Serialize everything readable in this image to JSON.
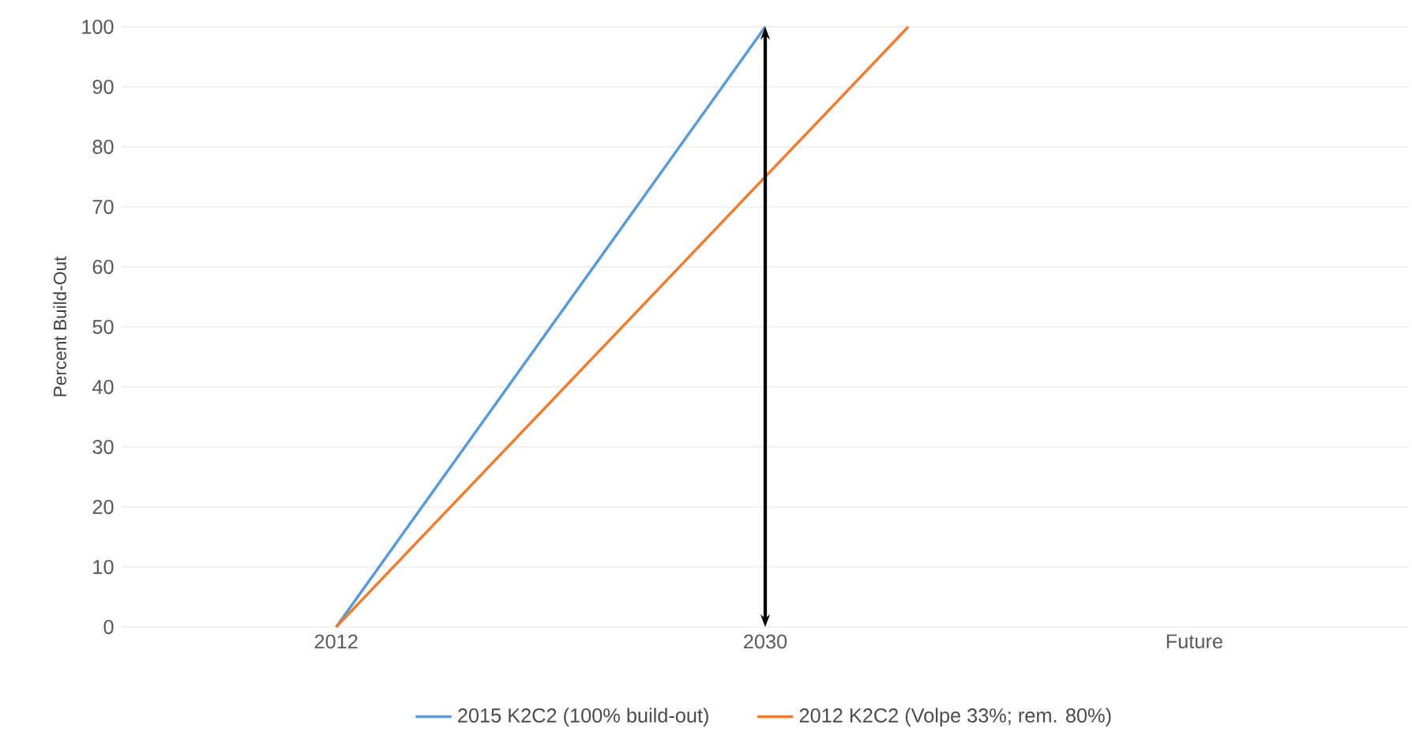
{
  "chart_data": {
    "type": "line",
    "ylabel": "Percent Build-Out",
    "xlim": [
      2003,
      2057
    ],
    "xticks": [
      2012,
      2030,
      {
        "value": 2048,
        "label": "Future"
      }
    ],
    "ylim": [
      0,
      100
    ],
    "yticks": [
      0,
      10,
      20,
      30,
      40,
      50,
      60,
      70,
      80,
      90,
      100
    ],
    "series": [
      {
        "name": "2015 K2C2 (100% build-out)",
        "color": "#5b9bd5",
        "x": [
          2012,
          2030
        ],
        "values": [
          0,
          100
        ]
      },
      {
        "name": "2012 K2C2 (Volpe 33%; rem. 80%)",
        "color": "#ed7d31",
        "x": [
          2012,
          2036
        ],
        "values": [
          0,
          100
        ]
      }
    ],
    "ref_lines": [
      {
        "axis": "x",
        "value": 2030,
        "color": "#000000"
      }
    ],
    "grid": "y",
    "legend": "bottom",
    "marker": "none",
    "line_style": "solid"
  }
}
